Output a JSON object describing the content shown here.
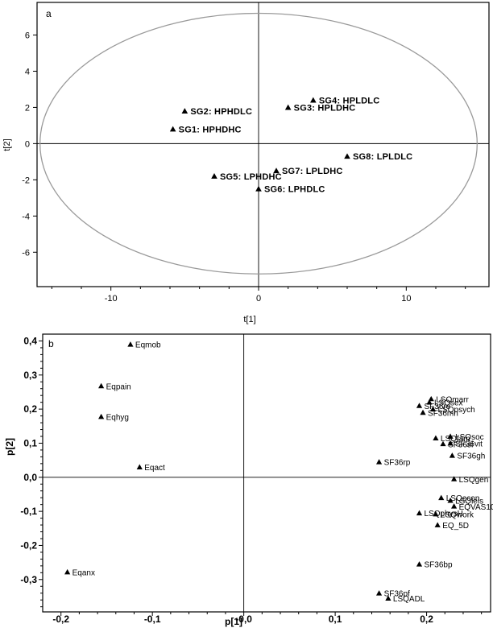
{
  "chart_data": [
    {
      "panel": "a",
      "type": "scatter",
      "xlabel": "t[1]",
      "ylabel": "t[2]",
      "xlim": [
        -15,
        15.6
      ],
      "ylim": [
        -7.9,
        7.8
      ],
      "x_ticks": [
        -10,
        0,
        10
      ],
      "y_ticks": [
        6,
        4,
        2,
        0,
        -2,
        -4,
        -6
      ],
      "x_tick_labels": [
        "-10",
        "0",
        "10"
      ],
      "y_tick_labels": [
        "6",
        "4",
        "2",
        "0",
        "-2",
        "-4",
        "-6"
      ],
      "ellipse": {
        "rx": 14.8,
        "ry": 7.2
      },
      "points": [
        {
          "label": "SG4: HPLDLC",
          "x": 3.7,
          "y": 2.4
        },
        {
          "label": "SG3: HPLDHC",
          "x": 2.0,
          "y": 2.0
        },
        {
          "label": "SG2: HPHDLC",
          "x": -5.0,
          "y": 1.8
        },
        {
          "label": "SG1: HPHDHC",
          "x": -5.8,
          "y": 0.8
        },
        {
          "label": "SG8: LPLDLC",
          "x": 6.0,
          "y": -0.7
        },
        {
          "label": "SG7: LPLDHC",
          "x": 1.2,
          "y": -1.5
        },
        {
          "label": "SG5: LPHDHC",
          "x": -3.0,
          "y": -1.8
        },
        {
          "label": "SG6: LPHDLC",
          "x": 0.0,
          "y": -2.5
        }
      ]
    },
    {
      "panel": "b",
      "type": "scatter",
      "xlabel": "p[1]",
      "ylabel": "p[2]",
      "xlim": [
        -0.22,
        0.27
      ],
      "ylim": [
        -0.395,
        0.42
      ],
      "x_ticks": [
        -0.2,
        -0.1,
        0,
        0.1,
        0.2
      ],
      "y_ticks": [
        0.4,
        0.3,
        0.2,
        0.1,
        0,
        -0.1,
        -0.2,
        -0.3
      ],
      "x_tick_labels": [
        "-0,2",
        "-0,1",
        "-0,0",
        "0,1",
        "0,2"
      ],
      "y_tick_labels": [
        "0,4",
        "0,3",
        "0,2",
        "0,1",
        "0,0",
        "-0,1",
        "-0,2",
        "-0,3"
      ],
      "points": [
        {
          "label": "Eqmob",
          "x": -0.124,
          "y": 0.39
        },
        {
          "label": "Eqpain",
          "x": -0.156,
          "y": 0.268
        },
        {
          "label": "Eqhyg",
          "x": -0.156,
          "y": 0.178
        },
        {
          "label": "Eqact",
          "x": -0.114,
          "y": 0.03
        },
        {
          "label": "Eqanx",
          "x": -0.193,
          "y": -0.278
        },
        {
          "label": "LSQmarr",
          "x": 0.205,
          "y": 0.23
        },
        {
          "label": "LSQsex",
          "x": 0.203,
          "y": 0.22
        },
        {
          "label": "SF36re",
          "x": 0.192,
          "y": 0.21
        },
        {
          "label": "LSQpsych",
          "x": 0.207,
          "y": 0.2
        },
        {
          "label": "SF36mh",
          "x": 0.196,
          "y": 0.19
        },
        {
          "label": "LSQfam",
          "x": 0.21,
          "y": 0.115
        },
        {
          "label": "LSQsoc",
          "x": 0.226,
          "y": 0.12
        },
        {
          "label": "SF36sf",
          "x": 0.218,
          "y": 0.098
        },
        {
          "label": "SF36vit",
          "x": 0.226,
          "y": 0.1
        },
        {
          "label": "SF36gh",
          "x": 0.228,
          "y": 0.064
        },
        {
          "label": "SF36rp",
          "x": 0.148,
          "y": 0.045
        },
        {
          "label": "LSQgen",
          "x": 0.23,
          "y": -0.005
        },
        {
          "label": "LSQecon",
          "x": 0.216,
          "y": -0.06
        },
        {
          "label": "LSQleis",
          "x": 0.226,
          "y": -0.068
        },
        {
          "label": "EQVAS100",
          "x": 0.23,
          "y": -0.085
        },
        {
          "label": "LSQphysH",
          "x": 0.192,
          "y": -0.105
        },
        {
          "label": "LSQwork",
          "x": 0.21,
          "y": -0.108
        },
        {
          "label": "EQ_5D",
          "x": 0.212,
          "y": -0.14
        },
        {
          "label": "SF36bp",
          "x": 0.192,
          "y": -0.255
        },
        {
          "label": "SF36pf",
          "x": 0.148,
          "y": -0.34
        },
        {
          "label": "LSQADL",
          "x": 0.158,
          "y": -0.355
        }
      ]
    }
  ]
}
